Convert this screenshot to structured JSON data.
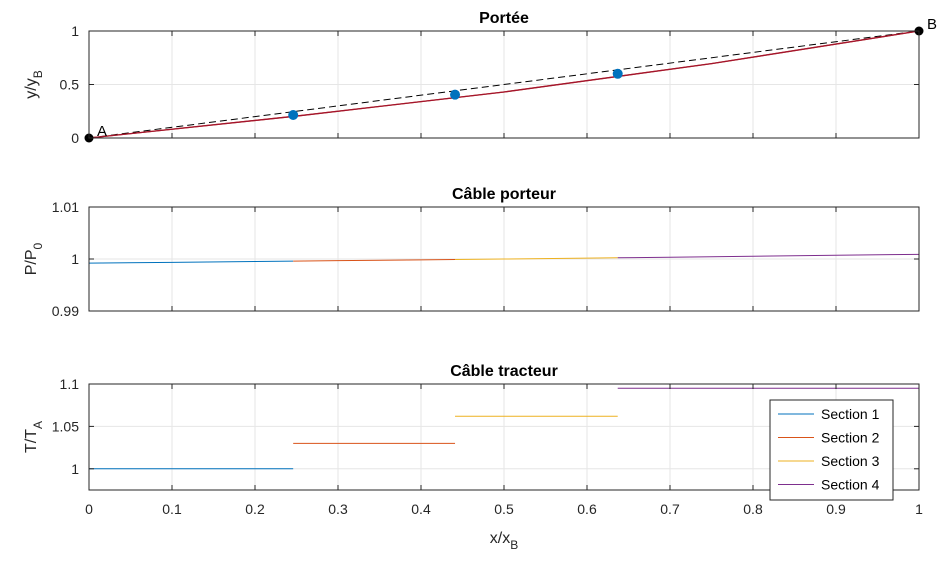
{
  "chart_data": [
    {
      "type": "line",
      "title": "Portée",
      "ylabel": "y/y",
      "ylabel_sub": "B",
      "xlim": [
        0,
        1
      ],
      "ylim": [
        0,
        1
      ],
      "xticks": [
        0,
        0.1,
        0.2,
        0.3,
        0.4,
        0.5,
        0.6,
        0.7,
        0.8,
        0.9,
        1
      ],
      "yticks": [
        0,
        0.5,
        1
      ],
      "ytick_labels": [
        "0",
        "0.5",
        "1"
      ],
      "grid": true,
      "series": [
        {
          "style": "dashed",
          "color": "#000000",
          "x": [
            0,
            1
          ],
          "y": [
            0,
            1
          ]
        },
        {
          "style": "solid",
          "color": "#d95319",
          "x": [
            0,
            0.25,
            0.5,
            0.75,
            1
          ],
          "y": [
            0,
            0.205,
            0.43,
            0.695,
            1
          ]
        },
        {
          "style": "solid",
          "color": "#a2142f",
          "x": [
            0,
            0.25,
            0.5,
            0.75,
            1
          ],
          "y": [
            0,
            0.205,
            0.43,
            0.695,
            1
          ]
        }
      ],
      "markers": [
        {
          "x": 0.246,
          "y": 0.215,
          "color": "#0072bd"
        },
        {
          "x": 0.441,
          "y": 0.405,
          "color": "#0072bd"
        },
        {
          "x": 0.637,
          "y": 0.6,
          "color": "#0072bd"
        }
      ],
      "endpoints": [
        {
          "label": "A",
          "x": 0,
          "y": 0
        },
        {
          "label": "B",
          "x": 1,
          "y": 1
        }
      ]
    },
    {
      "type": "line",
      "title": "Câble porteur",
      "ylabel": "P/P",
      "ylabel_sub": "0",
      "xlim": [
        0,
        1
      ],
      "ylim": [
        0.99,
        1.01
      ],
      "xticks": [
        0,
        0.1,
        0.2,
        0.3,
        0.4,
        0.5,
        0.6,
        0.7,
        0.8,
        0.9,
        1
      ],
      "yticks": [
        0.99,
        1,
        1.01
      ],
      "ytick_labels": [
        "0.99",
        "1",
        "1.01"
      ],
      "grid": true,
      "series": [
        {
          "name": "Section 1",
          "color": "#0072bd",
          "x": [
            0,
            0.1,
            0.2,
            0.246
          ],
          "y": [
            0.9992,
            0.99935,
            0.99951,
            0.99959
          ]
        },
        {
          "name": "Section 2",
          "color": "#d95319",
          "x": [
            0.246,
            0.3,
            0.4,
            0.441
          ],
          "y": [
            0.99959,
            0.99968,
            0.99983,
            0.9999
          ]
        },
        {
          "name": "Section 3",
          "color": "#edb120",
          "x": [
            0.441,
            0.5,
            0.6,
            0.637
          ],
          "y": [
            0.9999,
            1.0,
            1.00017,
            1.00023
          ]
        },
        {
          "name": "Section 4",
          "color": "#7e2f8e",
          "x": [
            0.637,
            0.7,
            0.8,
            0.9,
            1.0
          ],
          "y": [
            1.00023,
            1.00034,
            1.00053,
            1.00071,
            1.0009
          ]
        }
      ]
    },
    {
      "type": "line",
      "title": "Câble tracteur",
      "ylabel": "T/T",
      "ylabel_sub": "A",
      "xlabel": "x/x",
      "xlabel_sub": "B",
      "xlim": [
        0,
        1
      ],
      "ylim": [
        0.975,
        1.1
      ],
      "xticks": [
        0,
        0.1,
        0.2,
        0.3,
        0.4,
        0.5,
        0.6,
        0.7,
        0.8,
        0.9,
        1
      ],
      "xtick_labels": [
        "0",
        "0.1",
        "0.2",
        "0.3",
        "0.4",
        "0.5",
        "0.6",
        "0.7",
        "0.8",
        "0.9",
        "1"
      ],
      "yticks": [
        1,
        1.05,
        1.1
      ],
      "ytick_labels": [
        "1",
        "1.05",
        "1.1"
      ],
      "grid": true,
      "legend": "bottom-right",
      "series": [
        {
          "name": "Section 1",
          "color": "#0072bd",
          "x": [
            0,
            0.246
          ],
          "y": [
            1.0,
            1.0
          ]
        },
        {
          "name": "Section 2",
          "color": "#d95319",
          "x": [
            0.246,
            0.441
          ],
          "y": [
            1.03,
            1.03
          ]
        },
        {
          "name": "Section 3",
          "color": "#edb120",
          "x": [
            0.441,
            0.637
          ],
          "y": [
            1.062,
            1.062
          ]
        },
        {
          "name": "Section 4",
          "color": "#7e2f8e",
          "x": [
            0.637,
            1.0
          ],
          "y": [
            1.095,
            1.095
          ]
        }
      ]
    }
  ]
}
